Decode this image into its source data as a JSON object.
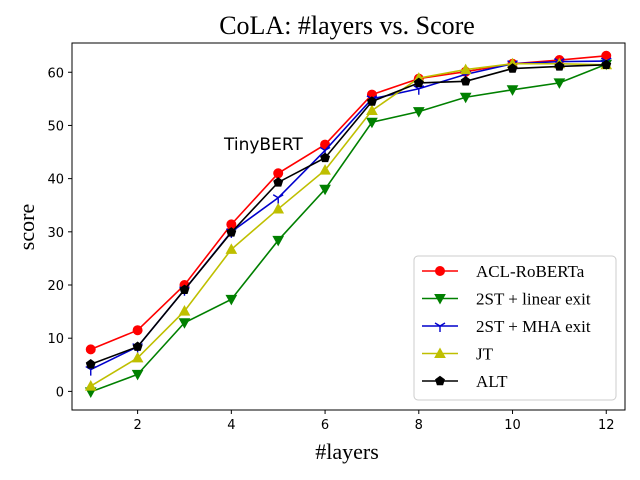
{
  "chart_data": {
    "type": "line",
    "title": "CoLA: #layers vs. Score",
    "xlabel": "#layers",
    "ylabel": "score",
    "xlim": [
      0.6,
      12.4
    ],
    "ylim": [
      -3.5,
      65.5
    ],
    "xticks": [
      2,
      4,
      6,
      8,
      10,
      12
    ],
    "yticks": [
      0,
      10,
      20,
      30,
      40,
      50,
      60
    ],
    "grid": false,
    "legend_position": "bottom-right",
    "x": [
      1,
      2,
      3,
      4,
      5,
      6,
      7,
      8,
      9,
      10,
      11,
      12
    ],
    "series": [
      {
        "name": "ACL-RoBERTa",
        "color": "#ff0000",
        "marker": "circle",
        "values": [
          7.9,
          11.5,
          20.0,
          31.4,
          41.0,
          46.4,
          55.8,
          58.8,
          60.1,
          61.6,
          62.3,
          63.1
        ]
      },
      {
        "name": "2ST + linear exit",
        "color": "#008000",
        "marker": "triangle-down",
        "values": [
          -0.1,
          3.2,
          12.9,
          17.3,
          28.4,
          38.0,
          50.6,
          52.6,
          55.3,
          56.7,
          58.0,
          61.5
        ]
      },
      {
        "name": "2ST + MHA exit",
        "color": "#0000cc",
        "marker": "tri-down",
        "values": [
          4.1,
          8.4,
          19.1,
          30.0,
          36.4,
          45.3,
          55.0,
          56.9,
          59.6,
          61.6,
          62.0,
          62.1
        ]
      },
      {
        "name": "JT",
        "color": "#bfbf00",
        "marker": "triangle-up",
        "values": [
          1.0,
          6.3,
          15.1,
          26.7,
          34.3,
          41.6,
          52.8,
          58.9,
          60.5,
          61.6,
          61.6,
          61.4
        ]
      },
      {
        "name": "ALT",
        "color": "#000000",
        "marker": "pentagon",
        "values": [
          5.1,
          8.4,
          19.1,
          29.9,
          39.3,
          43.9,
          54.5,
          58.0,
          58.3,
          60.7,
          61.1,
          61.4
        ]
      }
    ],
    "annotations": [
      {
        "text": "TinyBERT",
        "x": 4.7,
        "y": 46.5
      }
    ]
  }
}
